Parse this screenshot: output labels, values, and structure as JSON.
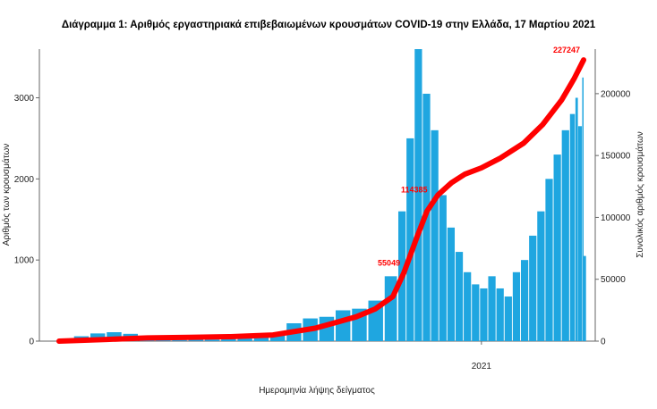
{
  "chart_data": {
    "type": "bar+line",
    "title": "Διάγραμμα 1: Αριθμός εργαστηριακά επιβεβαιωμένων κρουσμάτων COVID-19 στην Ελλάδα, 17 Μαρτίου 2021",
    "xlabel": "Ημερομηνία λήψης δείγματος",
    "ylabel_left": "Αριθμός των κρουσμάτων",
    "ylabel_right": "Συνολικός αριθμός κρουσμάτων",
    "x_ticks": [
      "2021"
    ],
    "y_left_ticks": [
      0,
      1000,
      2000,
      3000
    ],
    "y_left_lim": [
      0,
      3600
    ],
    "y_right_ticks": [
      0,
      50000,
      100000,
      150000,
      200000
    ],
    "y_right_lim": [
      0,
      236000
    ],
    "grid": false,
    "bar_color": "#1fa6e0",
    "line_color": "#ff0000",
    "x_range": [
      "2020-02-26",
      "2021-03-17"
    ],
    "series": [
      {
        "name": "",
        "kind": "bar",
        "axis": "left",
        "points": [
          [
            "2020-02-26",
            0
          ],
          [
            "2020-03-08",
            60
          ],
          [
            "2020-03-20",
            95
          ],
          [
            "2020-04-01",
            110
          ],
          [
            "2020-04-13",
            90
          ],
          [
            "2020-04-25",
            35
          ],
          [
            "2020-05-07",
            20
          ],
          [
            "2020-05-19",
            15
          ],
          [
            "2020-05-31",
            25
          ],
          [
            "2020-06-12",
            20
          ],
          [
            "2020-06-24",
            30
          ],
          [
            "2020-07-06",
            35
          ],
          [
            "2020-07-18",
            45
          ],
          [
            "2020-07-30",
            90
          ],
          [
            "2020-08-11",
            220
          ],
          [
            "2020-08-23",
            280
          ],
          [
            "2020-09-04",
            300
          ],
          [
            "2020-09-16",
            380
          ],
          [
            "2020-09-28",
            400
          ],
          [
            "2020-10-10",
            500
          ],
          [
            "2020-10-22",
            800
          ],
          [
            "2020-11-01",
            1600
          ],
          [
            "2020-11-07",
            2500
          ],
          [
            "2020-11-13",
            3600
          ],
          [
            "2020-11-19",
            3050
          ],
          [
            "2020-11-25",
            2600
          ],
          [
            "2020-12-01",
            1800
          ],
          [
            "2020-12-07",
            1400
          ],
          [
            "2020-12-13",
            1100
          ],
          [
            "2020-12-19",
            850
          ],
          [
            "2020-12-25",
            700
          ],
          [
            "2020-12-31",
            650
          ],
          [
            "2021-01-06",
            800
          ],
          [
            "2021-01-12",
            650
          ],
          [
            "2021-01-18",
            550
          ],
          [
            "2021-01-24",
            850
          ],
          [
            "2021-01-30",
            1000
          ],
          [
            "2021-02-05",
            1300
          ],
          [
            "2021-02-11",
            1600
          ],
          [
            "2021-02-17",
            2000
          ],
          [
            "2021-02-23",
            2300
          ],
          [
            "2021-03-01",
            2600
          ],
          [
            "2021-03-07",
            2800
          ],
          [
            "2021-03-11",
            3000
          ],
          [
            "2021-03-13",
            2650
          ],
          [
            "2021-03-16",
            3250
          ],
          [
            "2021-03-17",
            1050
          ]
        ]
      },
      {
        "name": "",
        "kind": "line",
        "axis": "right",
        "points": [
          [
            "2020-02-26",
            0
          ],
          [
            "2020-04-01",
            1400
          ],
          [
            "2020-05-01",
            2600
          ],
          [
            "2020-06-01",
            3100
          ],
          [
            "2020-07-01",
            3600
          ],
          [
            "2020-08-01",
            5000
          ],
          [
            "2020-09-01",
            10500
          ],
          [
            "2020-10-01",
            19600
          ],
          [
            "2020-10-15",
            26000
          ],
          [
            "2020-10-28",
            36000
          ],
          [
            "2020-11-05",
            55000
          ],
          [
            "2020-11-15",
            85000
          ],
          [
            "2020-11-22",
            105000
          ],
          [
            "2020-11-30",
            118000
          ],
          [
            "2020-12-10",
            128000
          ],
          [
            "2020-12-20",
            135000
          ],
          [
            "2021-01-01",
            140000
          ],
          [
            "2021-01-15",
            148000
          ],
          [
            "2021-02-01",
            160000
          ],
          [
            "2021-02-15",
            175000
          ],
          [
            "2021-03-01",
            195000
          ],
          [
            "2021-03-10",
            212000
          ],
          [
            "2021-03-17",
            227247
          ]
        ]
      }
    ],
    "annotations": [
      {
        "text": "227247",
        "x": "2021-03-17",
        "y_right": 227247
      },
      {
        "text": "55049",
        "x": "2020-11-05",
        "y_right": 55049
      },
      {
        "text": "114385",
        "x": "2020-11-25",
        "y_right": 114385
      }
    ]
  }
}
